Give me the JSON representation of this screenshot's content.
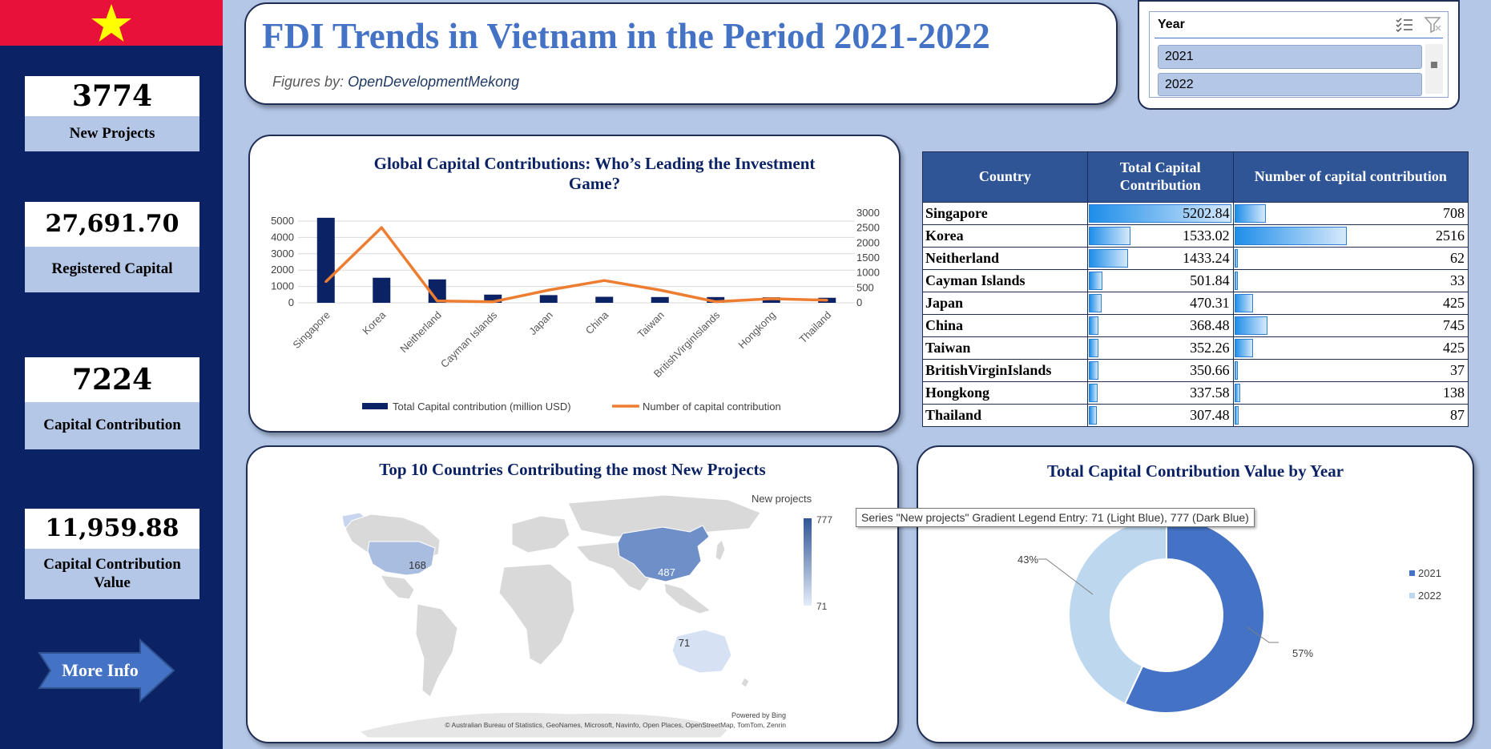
{
  "header": {
    "title": "FDI Trends in Vietnam in the Period 2021-2022",
    "byline_prefix": "Figures by:",
    "byline_source": "OpenDevelopmentMekong"
  },
  "kpis": [
    {
      "value": "3774",
      "label": "New Projects"
    },
    {
      "value": "27,691.70",
      "label": "Registered Capital"
    },
    {
      "value": "7224",
      "label": "Capital Contribution"
    },
    {
      "value": "11,959.88",
      "label": "Capital Contribution Value"
    }
  ],
  "more_info_label": "More Info",
  "slicer": {
    "title": "Year",
    "items": [
      "2021",
      "2022"
    ],
    "icons": [
      "multi-select-icon",
      "clear-filter-icon"
    ]
  },
  "colors": {
    "sidebar": "#0b2265",
    "flag_red": "#e8113a",
    "flag_star": "#ffff00",
    "accent": "#4472c4",
    "bar": "#0b2265",
    "line": "#ed7d31",
    "donut_2021": "#4472c4",
    "donut_2022": "#bdd7ee"
  },
  "table": {
    "headers": [
      "Country",
      "Total Capital Contribution",
      "Number of capital contribution"
    ],
    "rows": [
      {
        "country": "Singapore",
        "capital": "5202.84",
        "count": "708"
      },
      {
        "country": "Korea",
        "capital": "1533.02",
        "count": "2516"
      },
      {
        "country": "Neitherland",
        "capital": "1433.24",
        "count": "62"
      },
      {
        "country": "Cayman Islands",
        "capital": "501.84",
        "count": "33"
      },
      {
        "country": "Japan",
        "capital": "470.31",
        "count": "425"
      },
      {
        "country": "China",
        "capital": "368.48",
        "count": "745"
      },
      {
        "country": "Taiwan",
        "capital": "352.26",
        "count": "425"
      },
      {
        "country": "BritishVirginIslands",
        "capital": "350.66",
        "count": "37"
      },
      {
        "country": "Hongkong",
        "capital": "337.58",
        "count": "138"
      },
      {
        "country": "Thailand",
        "capital": "307.48",
        "count": "87"
      }
    ]
  },
  "map": {
    "legend_title": "New projects",
    "legend_max": "777",
    "legend_min": "71",
    "labels": [
      "168",
      "487",
      "71"
    ],
    "credit_top": "Powered by Bing",
    "credit_bottom": "© Australian Bureau of Statistics, GeoNames, Microsoft, Navinfo, Open Places, OpenStreetMap, TomTom, Zenrin"
  },
  "tooltip": "Series \"New projects\" Gradient Legend Entry: 71 (Light Blue), 777 (Dark Blue)",
  "chart_data": [
    {
      "type": "bar",
      "title": "Global Capital Contributions: Who’s Leading the Investment Game?",
      "categories": [
        "Singapore",
        "Korea",
        "Neitherland",
        "Cayman Islands",
        "Japan",
        "China",
        "Taiwan",
        "BritishVirginIslands",
        "Hongkong",
        "Thailand"
      ],
      "series": [
        {
          "name": "Total Capital contribution (million USD)",
          "kind": "bar",
          "axis": "left",
          "values": [
            5202.84,
            1533.02,
            1433.24,
            501.84,
            470.31,
            368.48,
            352.26,
            350.66,
            337.58,
            307.48
          ]
        },
        {
          "name": "Number of capital contribution",
          "kind": "line",
          "axis": "right",
          "values": [
            708,
            2516,
            62,
            33,
            425,
            745,
            425,
            37,
            138,
            87
          ]
        }
      ],
      "ylim": [
        0,
        5000
      ],
      "y_ticks": [
        "0",
        "1000",
        "2000",
        "3000",
        "4000",
        "5000"
      ],
      "y2lim": [
        0,
        3000
      ],
      "y2_ticks": [
        "0",
        "500",
        "1000",
        "1500",
        "2000",
        "2500",
        "3000"
      ],
      "legend": "bottom"
    },
    {
      "type": "map",
      "title": "Top 10 Countries Contributing the most New Projects",
      "regions": [
        "China",
        "United States",
        "Australia"
      ],
      "values": [
        487,
        168,
        71
      ]
    },
    {
      "type": "pie",
      "title": "Total Capital Contribution Value by Year",
      "categories": [
        "2021",
        "2022"
      ],
      "values": [
        57,
        43
      ],
      "labels": [
        "57%",
        "43%"
      ],
      "donut": true,
      "legend": "right"
    }
  ]
}
